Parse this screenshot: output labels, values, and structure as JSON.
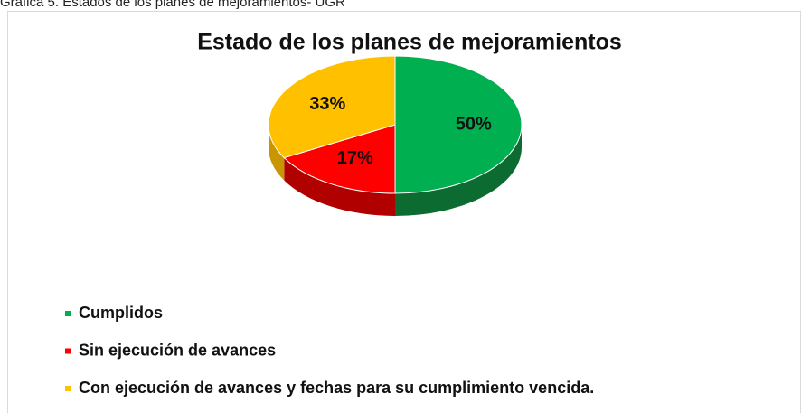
{
  "caption": "Gráfica 5. Estados de los planes de mejoramientos- UGR",
  "chart_data": {
    "type": "pie",
    "title": "Estado de los planes de mejoramientos",
    "categories": [
      "Cumplidos",
      "Sin ejecución de avances",
      "Con ejecución de avances y fechas para su cumplimiento vencida."
    ],
    "values": [
      50,
      17,
      33
    ],
    "value_labels": [
      "50%",
      "17%",
      "33%"
    ],
    "colors": [
      "#00b050",
      "#ff0000",
      "#ffc000"
    ],
    "side_colors": [
      "#0b6b30",
      "#b00000",
      "#c99500"
    ],
    "legend": "bottom-left"
  }
}
